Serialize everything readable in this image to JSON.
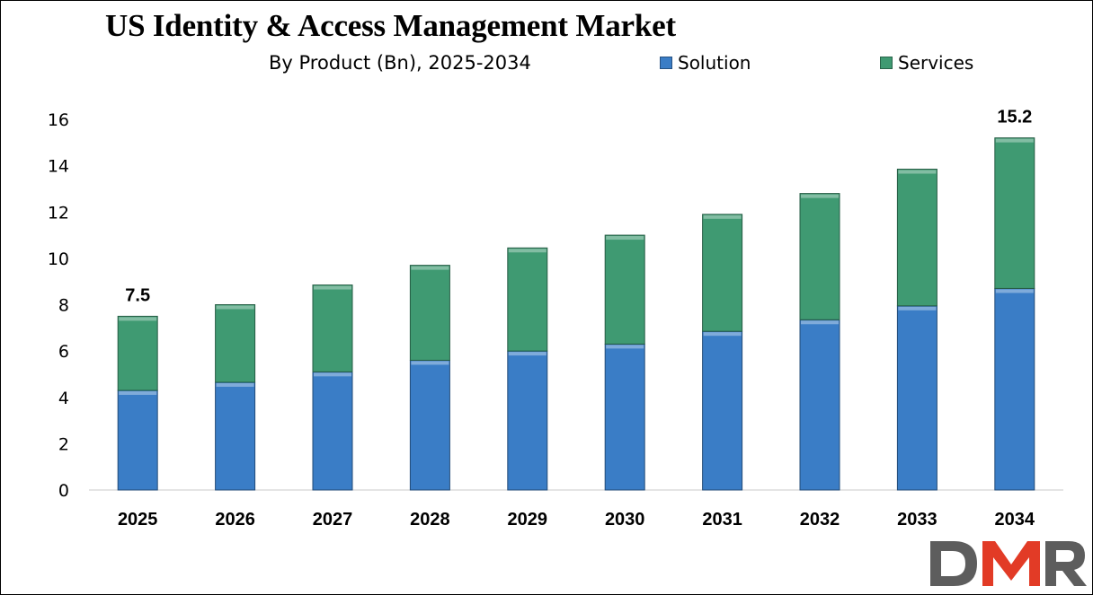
{
  "chart_data": {
    "type": "bar",
    "stacked": true,
    "title": "US Identity & Access Management Market",
    "subtitle": "By Product (Bn), 2025-2034",
    "categories": [
      "2025",
      "2026",
      "2027",
      "2028",
      "2029",
      "2030",
      "2031",
      "2032",
      "2033",
      "2034"
    ],
    "series": [
      {
        "name": "Solution",
        "color": "#3a7dc6",
        "values": [
          4.3,
          4.65,
          5.1,
          5.6,
          6.0,
          6.3,
          6.85,
          7.35,
          7.95,
          8.7
        ]
      },
      {
        "name": "Services",
        "color": "#3f9a72",
        "values": [
          3.2,
          3.35,
          3.75,
          4.1,
          4.45,
          4.7,
          5.05,
          5.45,
          5.9,
          6.5
        ]
      }
    ],
    "totals_labels": [
      {
        "category": "2025",
        "label": "7.5"
      },
      {
        "category": "2034",
        "label": "15.2"
      }
    ],
    "ylim": [
      0,
      16
    ],
    "yticks": [
      0,
      2,
      4,
      6,
      8,
      10,
      12,
      14,
      16
    ],
    "legend_position": "top-right",
    "grid": false
  },
  "logo": {
    "text": "DMR",
    "colors": [
      "#5d5d5d",
      "#e23b26"
    ]
  }
}
